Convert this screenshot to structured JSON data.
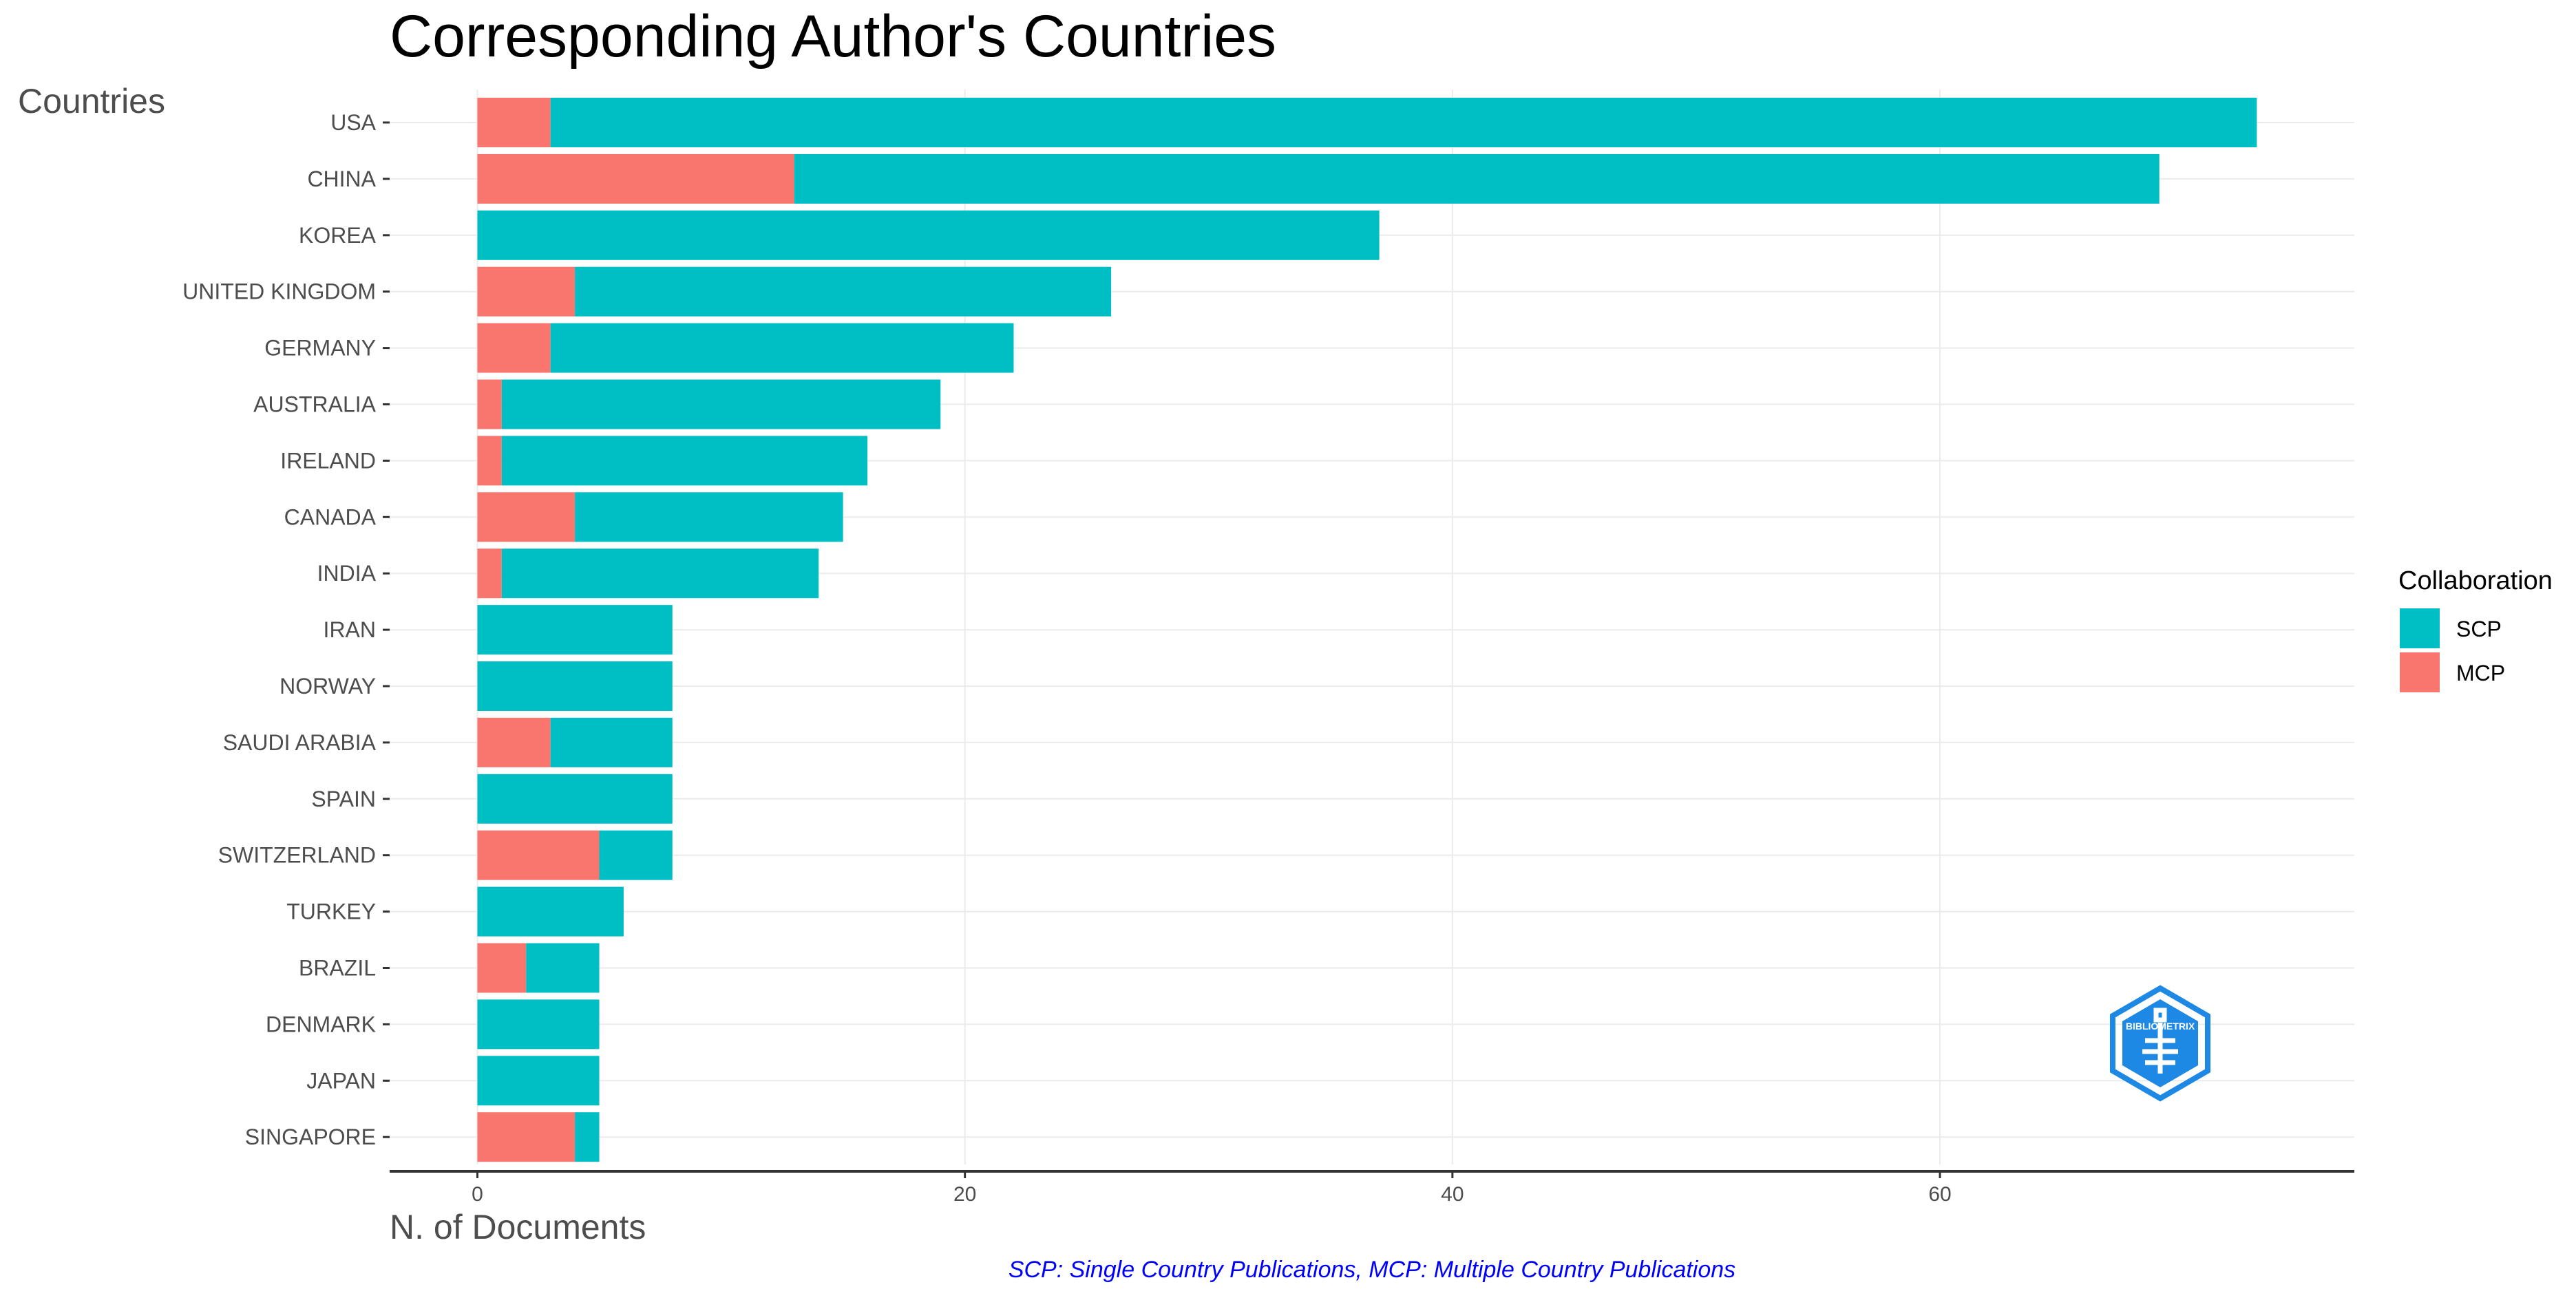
{
  "chart_data": {
    "type": "bar",
    "orientation": "horizontal",
    "stacked": true,
    "title": "Corresponding Author's Countries",
    "xlabel": "N. of Documents",
    "ylabel": "Countries",
    "caption": "SCP: Single Country Publications, MCP: Multiple Country Publications",
    "categories": [
      "USA",
      "CHINA",
      "KOREA",
      "UNITED KINGDOM",
      "GERMANY",
      "AUSTRALIA",
      "IRELAND",
      "CANADA",
      "INDIA",
      "IRAN",
      "NORWAY",
      "SAUDI ARABIA",
      "SPAIN",
      "SWITZERLAND",
      "TURKEY",
      "BRAZIL",
      "DENMARK",
      "JAPAN",
      "SINGAPORE"
    ],
    "series": [
      {
        "name": "MCP",
        "color": "#F8766D",
        "values": [
          3,
          13,
          0,
          4,
          3,
          1,
          1,
          4,
          1,
          0,
          0,
          3,
          0,
          5,
          0,
          2,
          0,
          0,
          4
        ]
      },
      {
        "name": "SCP",
        "color": "#00BFC4",
        "values": [
          70,
          56,
          37,
          22,
          19,
          18,
          15,
          11,
          13,
          8,
          8,
          5,
          8,
          3,
          6,
          3,
          5,
          5,
          1
        ]
      }
    ],
    "xlim": [
      -3.6,
      77
    ],
    "xticks": [
      0,
      20,
      40,
      60
    ],
    "grid": true,
    "legend": {
      "title": "Collaboration",
      "placement": "right",
      "items": [
        "SCP",
        "MCP"
      ]
    },
    "logo": {
      "text": "BIBLIOMETRIX",
      "color": "#1E88E5"
    }
  }
}
